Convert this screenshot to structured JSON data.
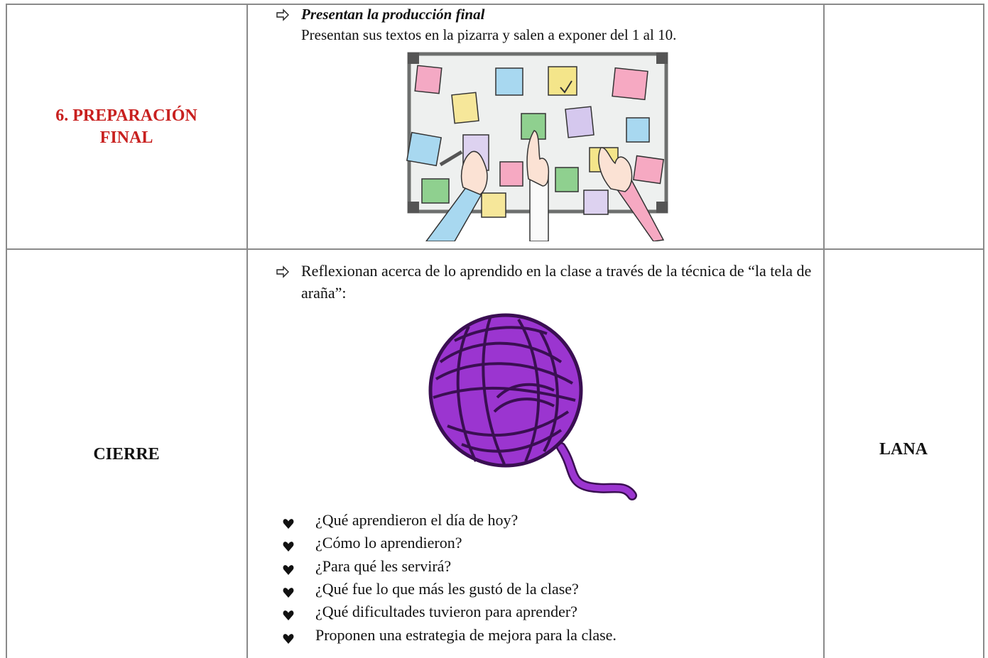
{
  "table": {
    "rows": [
      {
        "stage": "6. PREPARACIÓN FINAL",
        "activity": {
          "heading": "Presentan la producción final",
          "text": "Presentan sus textos en la pizarra y salen a exponer del 1 al 10."
        }
      },
      {
        "stage": "CIERRE",
        "activity": {
          "text": "Reflexionan acerca de lo aprendido en la clase a través de la técnica de “la tela de araña”:",
          "items": [
            "¿Qué aprendieron el día de hoy?",
            "¿Cómo lo aprendieron?",
            "¿Para qué les servirá?",
            "¿Qué fue lo que más les gustó de la clase?",
            "¿Qué dificultades tuvieron para aprender?",
            "Proponen una estrategia de mejora para la clase."
          ]
        },
        "resource": "LANA"
      }
    ]
  }
}
